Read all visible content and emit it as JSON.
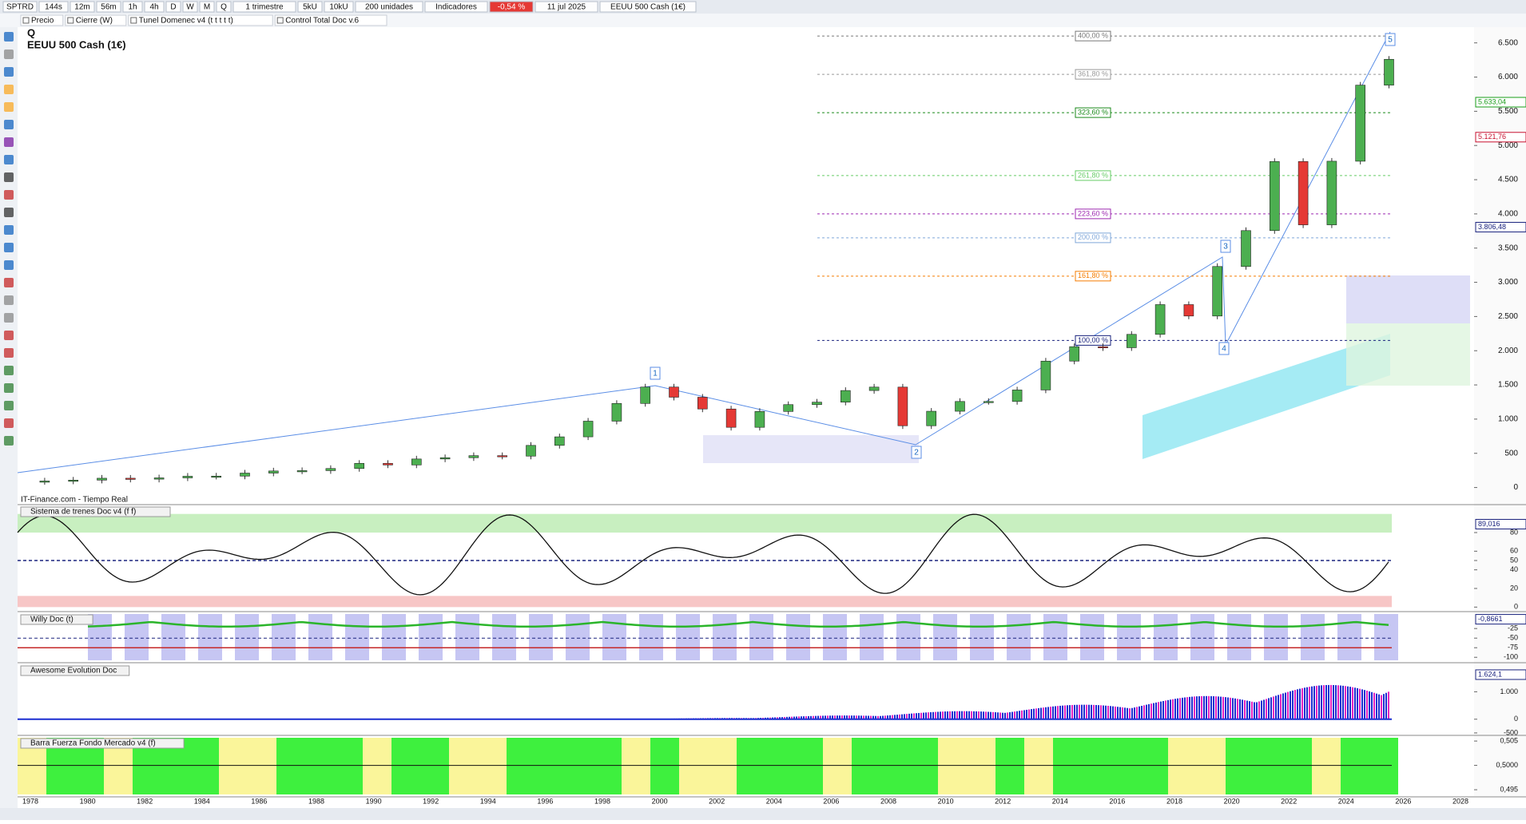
{
  "toolbar": [
    "SPTRD",
    "144s",
    "12m",
    "56m",
    "1h",
    "4h",
    "D",
    "W",
    "M",
    "Q",
    "1 trimestre",
    "5kU",
    "10kU",
    "200 unidades",
    "Indicadores",
    "-0,54 %",
    "11 jul 2025",
    "EEUU 500 Cash (1€)"
  ],
  "legend": [
    "Precio",
    "Cierre (W)",
    "Tunel Domenec v4 (t t t t t)",
    "Control Total Doc v.6"
  ],
  "main": {
    "symbol": "Q",
    "title": "EEUU 500 Cash (1€)",
    "source": "IT-Finance.com - Tiempo Real",
    "ylim": [
      -250,
      6730
    ],
    "yticks": [
      {
        "value": 0,
        "label": "0"
      },
      {
        "value": 500,
        "label": "500"
      },
      {
        "value": 1000,
        "label": "1.000"
      },
      {
        "value": 1500,
        "label": "1.500"
      },
      {
        "value": 2000,
        "label": "2.000"
      },
      {
        "value": 2500,
        "label": "2.500"
      },
      {
        "value": 3000,
        "label": "3.000"
      },
      {
        "value": 3500,
        "label": "3.500"
      },
      {
        "value": 4000,
        "label": "4.000"
      },
      {
        "value": 4500,
        "label": "4.500"
      },
      {
        "value": 5000,
        "label": "5.000"
      },
      {
        "value": 5500,
        "label": "5.500"
      },
      {
        "value": 6000,
        "label": "6.000"
      },
      {
        "value": 6500,
        "label": "6.500"
      }
    ],
    "years": [
      1978,
      1979,
      1980,
      1981,
      1982,
      1983,
      1984,
      1985,
      1986,
      1987,
      1988,
      1989,
      1990,
      1991,
      1992,
      1993,
      1994,
      1995,
      1996,
      1997,
      1998,
      1999,
      2000,
      2001,
      2002,
      2003,
      2004,
      2005,
      2006,
      2007,
      2008,
      2009,
      2010,
      2011,
      2012,
      2013,
      2014,
      2015,
      2016,
      2017,
      2018,
      2019,
      2020,
      2021,
      2022,
      2023,
      2024,
      2025
    ],
    "closes": [
      95,
      108,
      136,
      122,
      141,
      165,
      167,
      211,
      242,
      247,
      278,
      353,
      330,
      417,
      436,
      466,
      459,
      616,
      741,
      970,
      1229,
      1469,
      1320,
      1148,
      880,
      1112,
      1212,
      1248,
      1418,
      1468,
      903,
      1115,
      1258,
      1258,
      1426,
      1848,
      2059,
      2044,
      2239,
      2674,
      2507,
      3231,
      3756,
      4766,
      3840,
      4770,
      5882,
      6260
    ],
    "markers": [
      {
        "value": 5633.04,
        "label": "5.633,04",
        "color": "#1a9e1a"
      },
      {
        "value": 5121.76,
        "label": "5.121,76",
        "color": "#c8102e"
      },
      {
        "value": 3806.48,
        "label": "3.806,48",
        "color": "#1a237e"
      }
    ],
    "fib": [
      {
        "value": 6600,
        "label": "400,00 %",
        "color": "#777777"
      },
      {
        "value": 6040,
        "label": "361,80 %",
        "color": "#999999"
      },
      {
        "value": 5480,
        "label": "323,60 %",
        "color": "#1a8a1a"
      },
      {
        "value": 4560,
        "label": "261,80 %",
        "color": "#66cc66"
      },
      {
        "value": 4000,
        "label": "223,60 %",
        "color": "#9c27b0"
      },
      {
        "value": 3650,
        "label": "200,00 %",
        "color": "#7fa7d9"
      },
      {
        "value": 3090,
        "label": "161,80 %",
        "color": "#f57c00"
      },
      {
        "value": 2150,
        "label": "100,00 %",
        "color": "#1a237e"
      }
    ],
    "waves": [
      "1",
      "2",
      "3",
      "4",
      "5"
    ],
    "xticks": [
      "1978",
      "1980",
      "1982",
      "1984",
      "1986",
      "1988",
      "1990",
      "1992",
      "1994",
      "1996",
      "1998",
      "2000",
      "2002",
      "2004",
      "2006",
      "2008",
      "2010",
      "2012",
      "2014",
      "2016",
      "2018",
      "2020",
      "2022",
      "2024",
      "2026",
      "2028"
    ]
  },
  "panels": [
    {
      "title": "Sistema de trenes Doc v4 (f f)",
      "ylim": [
        -4,
        110
      ],
      "yticks": [
        0,
        20,
        40,
        50,
        60,
        80
      ],
      "marker": {
        "value": 89.016,
        "label": "89,016"
      }
    },
    {
      "title": "Willy Doc (t)",
      "ylim": [
        -112,
        17
      ],
      "yticks": [
        -25,
        -50,
        -75,
        -100
      ],
      "marker": {
        "value": -0.8661,
        "label": "-0,8661"
      }
    },
    {
      "title": "Awesome Evolution Doc",
      "ylim": [
        -560,
        2030
      ],
      "yticks": [
        {
          "value": -500,
          "label": "-500"
        },
        0,
        {
          "value": 1000,
          "label": "1.000"
        }
      ],
      "marker": {
        "value": 1624.1,
        "label": "1.624,1"
      }
    },
    {
      "title": "Barra Fuerza Fondo Mercado v4 (f)",
      "ylim": [
        0.4937,
        0.506
      ],
      "yticks": [
        {
          "value": 0.495,
          "label": "0,495"
        },
        {
          "value": 0.5,
          "label": "0,5000"
        },
        {
          "value": 0.505,
          "label": "0,505"
        }
      ]
    }
  ]
}
